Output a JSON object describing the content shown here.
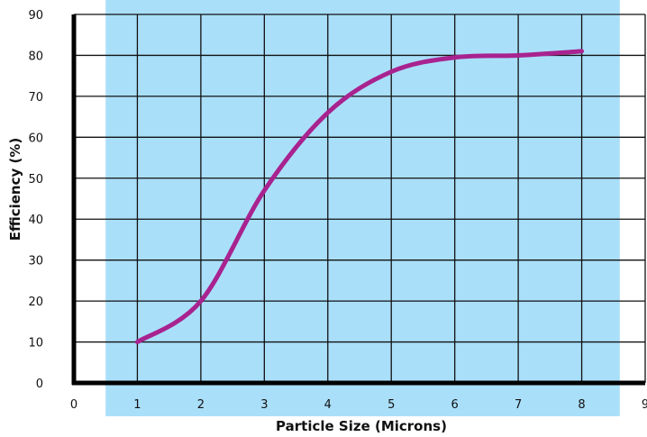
{
  "chart_data": {
    "type": "line",
    "xlabel": "Particle Size (Microns)",
    "ylabel": "Efficiency (%)",
    "xlim": [
      0,
      9
    ],
    "ylim": [
      0,
      90
    ],
    "x_ticks": [
      "0",
      "1",
      "2",
      "3",
      "4",
      "5",
      "6",
      "7",
      "8",
      "9"
    ],
    "y_ticks": [
      "0",
      "10",
      "20",
      "30",
      "40",
      "50",
      "60",
      "70",
      "80",
      "90"
    ],
    "grid": true,
    "shaded_x_range": [
      0.5,
      8.6
    ],
    "colors": {
      "line": "#a8238f",
      "shade": "#aadffa",
      "grid": "#111111",
      "axis": "#000000"
    },
    "series": [
      {
        "x": [
          1,
          2,
          3,
          4,
          5,
          6,
          7,
          8
        ],
        "y": [
          10,
          20,
          47,
          66,
          76,
          79.5,
          80,
          81
        ]
      }
    ]
  }
}
